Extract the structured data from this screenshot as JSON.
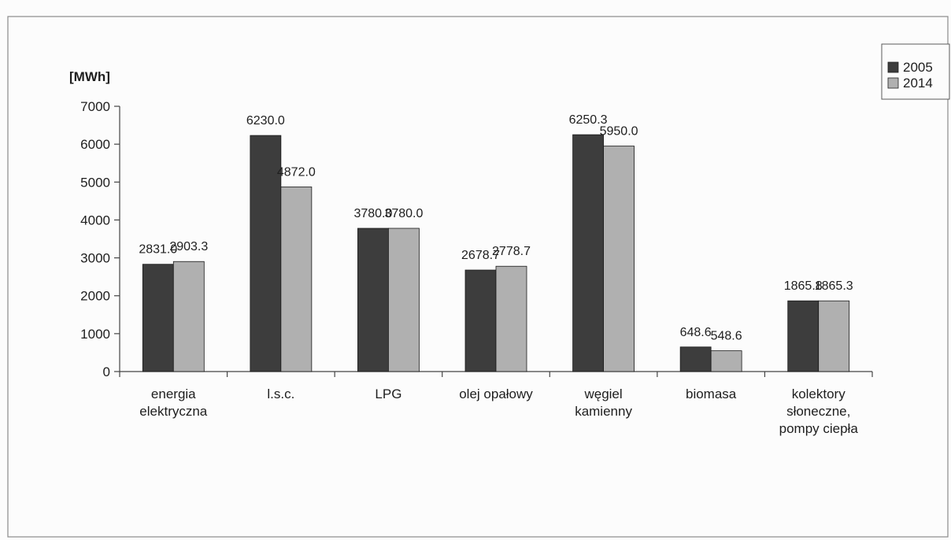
{
  "chart_data": {
    "type": "bar",
    "title": "",
    "ylabel": "[MWh]",
    "xlabel": "",
    "ylim": [
      0,
      7000
    ],
    "yticks": [
      "0",
      "1000",
      "2000",
      "3000",
      "4000",
      "5000",
      "6000",
      "7000"
    ],
    "categories": [
      [
        "energia",
        "elektryczna"
      ],
      [
        "l.s.c."
      ],
      [
        "LPG"
      ],
      [
        "olej opałowy"
      ],
      [
        "węgiel",
        "kamienny"
      ],
      [
        "biomasa"
      ],
      [
        "kolektory",
        "słoneczne,",
        "pompy ciepła"
      ]
    ],
    "series": [
      {
        "name": "2005",
        "color": "#3d3d3d",
        "values": [
          2831.0,
          6230.0,
          3780.0,
          2678.7,
          6250.3,
          648.6,
          1865.8
        ],
        "labels": [
          "2831.0",
          "6230.0",
          "3780.0",
          "2678.7",
          "6250.3",
          "648.6",
          "1865.8"
        ]
      },
      {
        "name": "2014",
        "color": "#b0b0b0",
        "values": [
          2903.3,
          4872.0,
          3780.0,
          2778.7,
          5950.0,
          548.6,
          1865.3
        ],
        "labels": [
          "2903.3",
          "4872.0",
          "3780.0",
          "2778.7",
          "5950.0",
          "548.6",
          "1865.3"
        ]
      }
    ],
    "legend_position": "top-right",
    "grid": false
  }
}
